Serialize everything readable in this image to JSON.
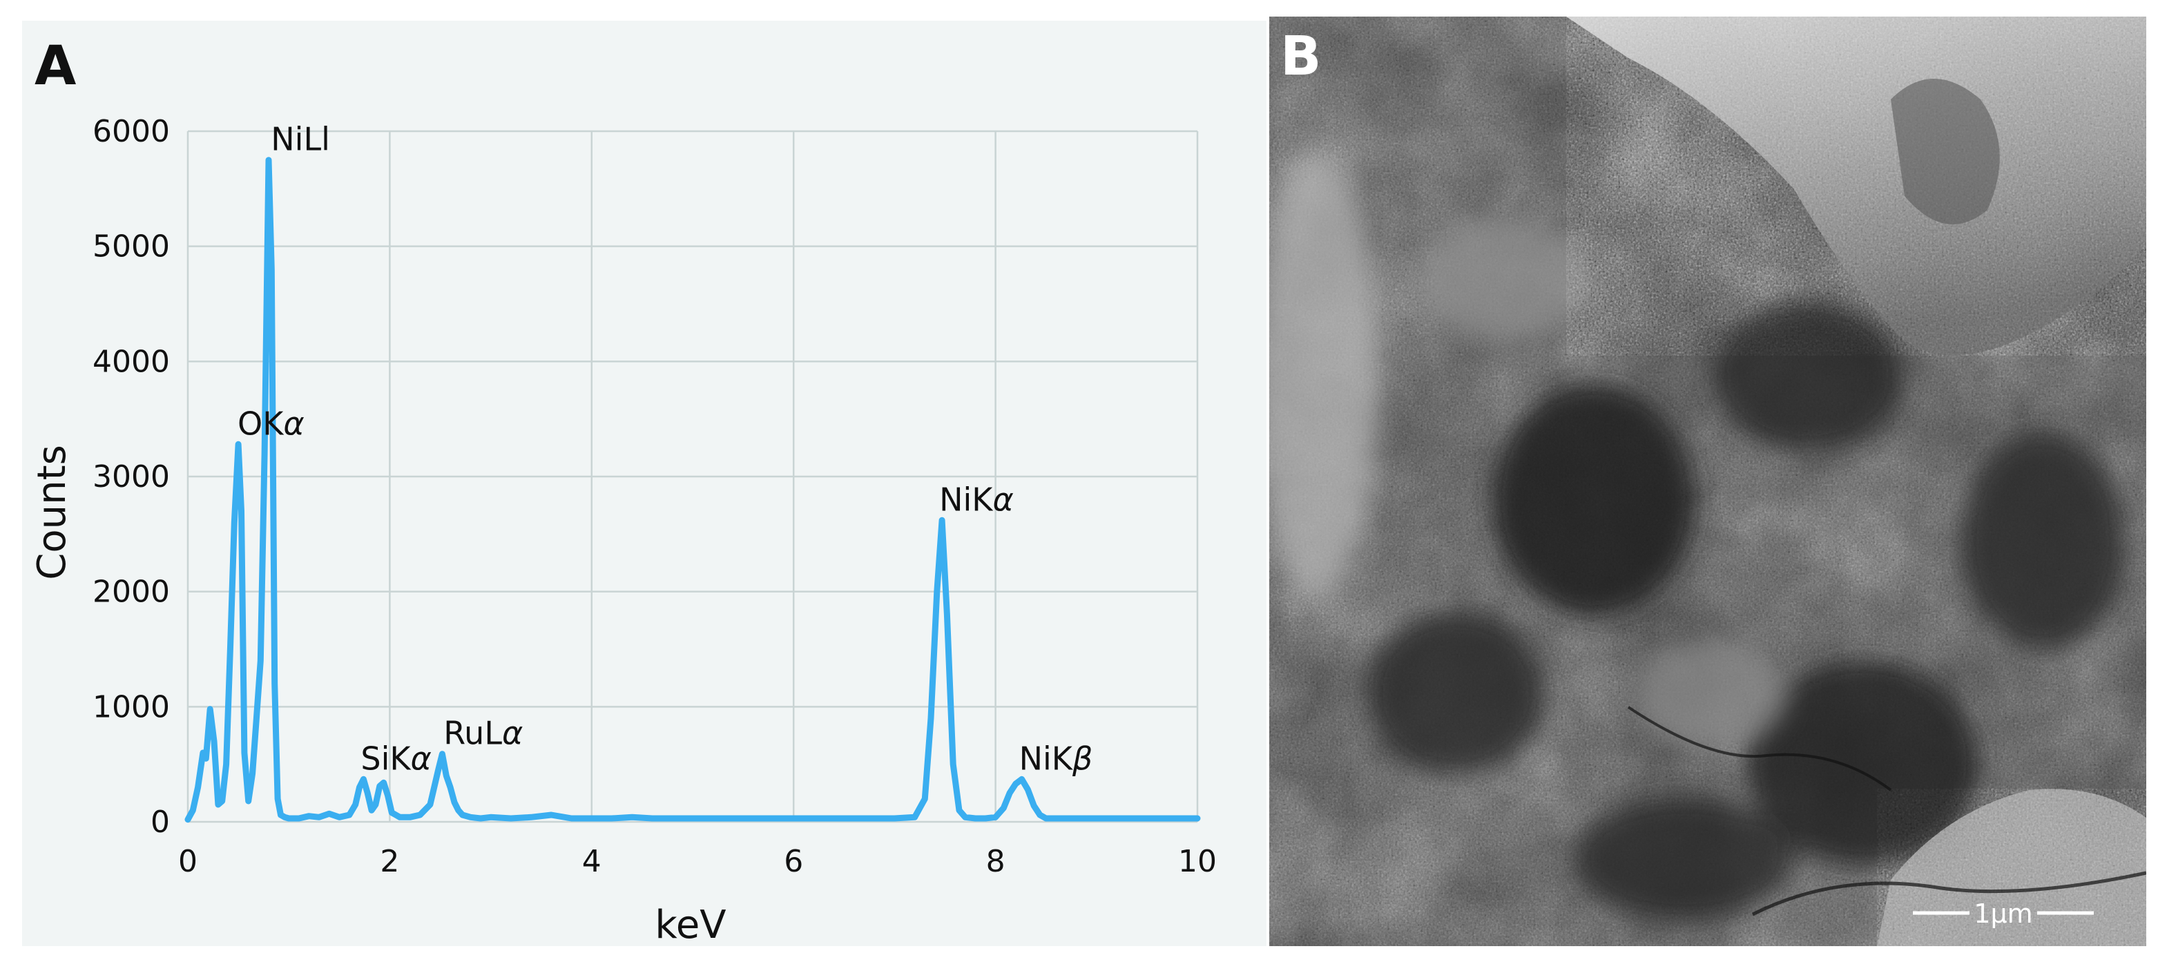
{
  "panels": {
    "a_label": "A",
    "b_label": "B"
  },
  "scale_bar": {
    "label": "1μm"
  },
  "colors": {
    "spectrum": "#3aaef0",
    "background": "#f1f5f5",
    "grid": "#c9d4d4"
  },
  "chart_data": {
    "type": "line",
    "title": "",
    "xlabel": "keV",
    "ylabel": "Counts",
    "xlim": [
      0,
      10
    ],
    "ylim": [
      0,
      6000
    ],
    "x_ticks": [
      0,
      2,
      4,
      6,
      8,
      10
    ],
    "y_ticks": [
      0,
      1000,
      2000,
      3000,
      4000,
      5000,
      6000
    ],
    "grid": true,
    "legend": "none",
    "peaks": [
      {
        "label": "NiLl",
        "energy": 0.85,
        "counts": 5750
      },
      {
        "label": "OKα",
        "energy": 0.52,
        "counts": 3280
      },
      {
        "label": "SiKα",
        "energy": 1.74,
        "counts": 370
      },
      {
        "label": "RuLα",
        "energy": 2.56,
        "counts": 590
      },
      {
        "label": "NiKα",
        "energy": 7.47,
        "counts": 2620
      },
      {
        "label": "NiKβ",
        "energy": 8.26,
        "counts": 370
      }
    ],
    "series": [
      {
        "x": [
          0.0,
          0.05,
          0.1,
          0.15,
          0.18,
          0.22,
          0.26,
          0.3,
          0.34,
          0.38,
          0.42,
          0.46,
          0.5,
          0.53,
          0.56,
          0.6,
          0.64,
          0.68,
          0.72,
          0.76,
          0.8,
          0.83,
          0.86,
          0.89,
          0.92,
          0.96,
          1.0,
          1.1,
          1.2,
          1.3,
          1.4,
          1.5,
          1.6,
          1.66,
          1.7,
          1.74,
          1.78,
          1.82,
          1.86,
          1.9,
          1.94,
          1.98,
          2.02,
          2.06,
          2.1,
          2.2,
          2.3,
          2.4,
          2.48,
          2.52,
          2.56,
          2.6,
          2.64,
          2.68,
          2.72,
          2.8,
          2.9,
          3.0,
          3.2,
          3.4,
          3.6,
          3.8,
          4.0,
          4.2,
          4.4,
          4.6,
          4.8,
          5.0,
          5.5,
          6.0,
          6.5,
          7.0,
          7.2,
          7.3,
          7.36,
          7.42,
          7.47,
          7.52,
          7.58,
          7.64,
          7.7,
          7.8,
          7.9,
          8.0,
          8.08,
          8.14,
          8.2,
          8.26,
          8.32,
          8.38,
          8.44,
          8.5,
          8.7,
          9.0,
          9.5,
          10.0
        ],
        "y": [
          20,
          100,
          300,
          600,
          550,
          980,
          700,
          150,
          180,
          500,
          1500,
          2600,
          3280,
          2700,
          600,
          180,
          420,
          900,
          1400,
          3200,
          5750,
          4800,
          1200,
          200,
          60,
          40,
          30,
          30,
          50,
          40,
          70,
          40,
          60,
          150,
          300,
          370,
          250,
          100,
          150,
          310,
          340,
          230,
          80,
          60,
          40,
          40,
          60,
          150,
          450,
          590,
          400,
          300,
          170,
          100,
          60,
          40,
          30,
          40,
          30,
          40,
          60,
          30,
          30,
          30,
          40,
          30,
          30,
          30,
          30,
          30,
          30,
          30,
          40,
          200,
          900,
          2000,
          2620,
          1800,
          500,
          100,
          40,
          30,
          30,
          40,
          120,
          250,
          330,
          370,
          280,
          140,
          60,
          30,
          30,
          30,
          30,
          30
        ]
      }
    ]
  }
}
